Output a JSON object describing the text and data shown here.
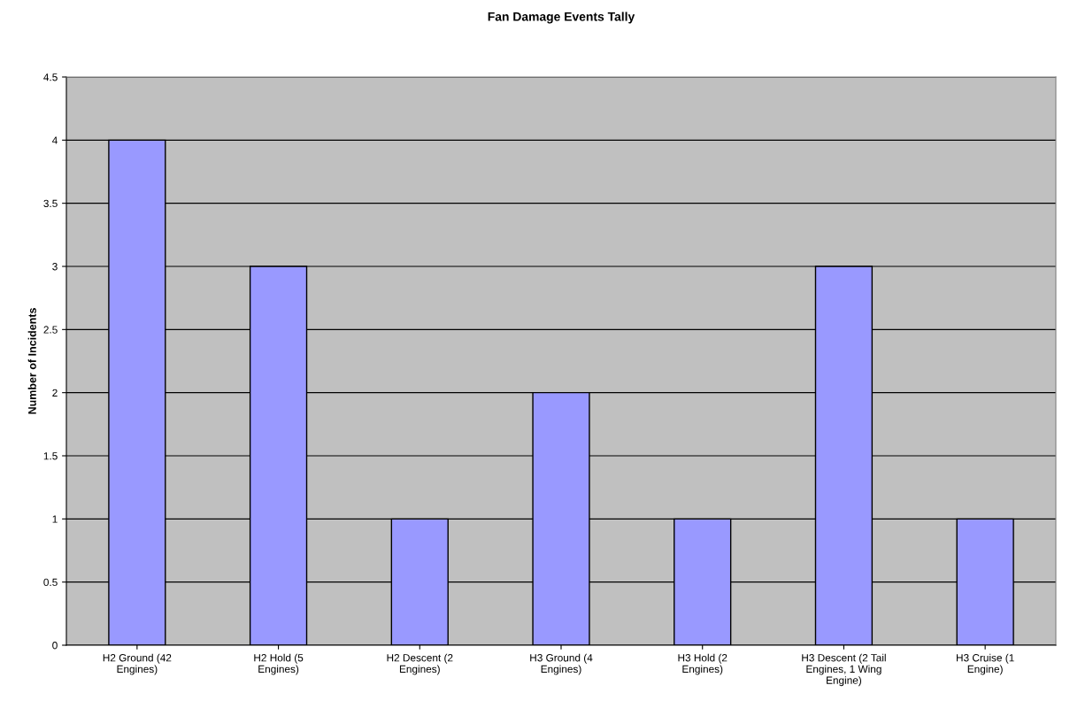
{
  "chart_data": {
    "type": "bar",
    "title": "Fan Damage Events Tally",
    "ylabel": "Number of Incidents",
    "categories": [
      "H2 Ground (42 Engines)",
      "H2 Hold (5 Engines)",
      "H2 Descent (2 Engines)",
      "H3 Ground (4 Engines)",
      "H3 Hold (2 Engines)",
      "H3 Descent (2 Tail Engines, 1 Wing Engine)",
      "H3 Cruise (1 Engine)"
    ],
    "values": [
      4,
      3,
      1,
      2,
      1,
      3,
      1
    ],
    "color": "#9999ff",
    "ylim": [
      0,
      4.5
    ],
    "yticks": [
      0,
      0.5,
      1,
      1.5,
      2,
      2.5,
      3,
      3.5,
      4,
      4.5
    ],
    "grid": "y",
    "legend": false
  }
}
